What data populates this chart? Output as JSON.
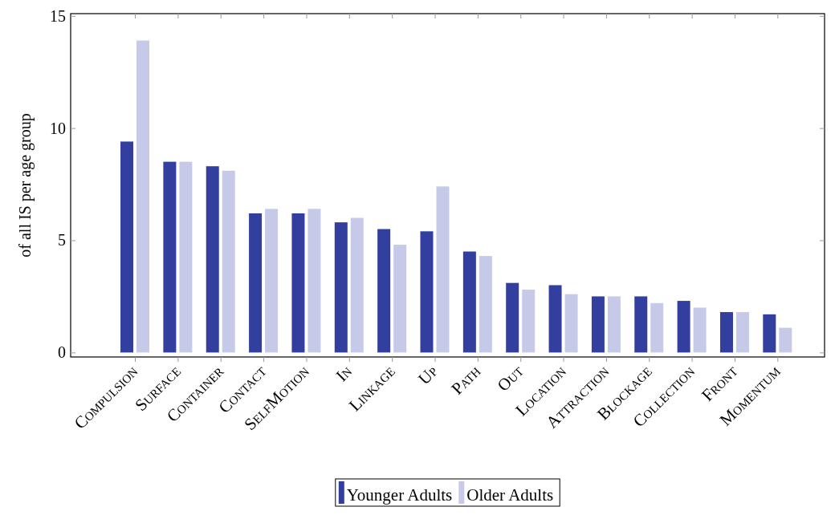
{
  "chart_data": {
    "type": "bar",
    "ylabel": "of all IS per age group",
    "categories": [
      "Compulsion",
      "Surface",
      "Container",
      "Contact",
      "SelfMotion",
      "In",
      "Linkage",
      "Up",
      "Path",
      "Out",
      "Location",
      "Attraction",
      "Blockage",
      "Collection",
      "Front",
      "Momentum"
    ],
    "series": [
      {
        "name": "Younger Adults",
        "color": "#323f9e",
        "values": [
          9.4,
          8.5,
          8.3,
          6.2,
          6.2,
          5.8,
          5.5,
          5.4,
          4.5,
          3.1,
          3.0,
          2.5,
          2.5,
          2.3,
          1.8,
          1.7
        ]
      },
      {
        "name": "Older Adults",
        "color": "#c6cae8",
        "values": [
          13.9,
          8.5,
          8.1,
          6.4,
          6.4,
          6.0,
          4.8,
          7.4,
          4.3,
          2.8,
          2.6,
          2.5,
          2.2,
          2.0,
          1.8,
          1.1
        ]
      }
    ],
    "ylim": [
      -0.2,
      15.1
    ],
    "yticks": [
      0,
      5,
      10,
      15
    ],
    "grid": false,
    "legend": "bottom"
  }
}
